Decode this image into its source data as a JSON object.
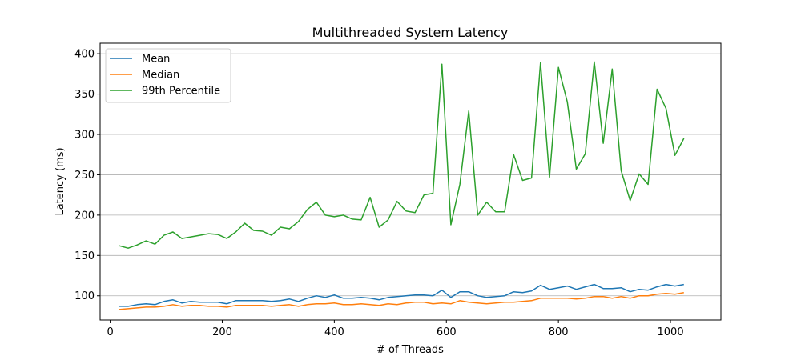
{
  "chart_data": {
    "type": "line",
    "title": "Multithreaded System Latency",
    "xlabel": "# of Threads",
    "ylabel": "Latency (ms)",
    "xlim": [
      -18,
      1090
    ],
    "ylim": [
      70,
      413
    ],
    "xticks": [
      0,
      200,
      400,
      600,
      800,
      1000
    ],
    "yticks": [
      100,
      150,
      200,
      250,
      300,
      350,
      400
    ],
    "grid": "y",
    "legend_position": "upper-left",
    "x": [
      16,
      32,
      48,
      64,
      80,
      96,
      112,
      128,
      144,
      160,
      176,
      192,
      208,
      224,
      240,
      256,
      272,
      288,
      304,
      320,
      336,
      352,
      368,
      384,
      400,
      416,
      432,
      448,
      464,
      480,
      496,
      512,
      528,
      544,
      560,
      576,
      592,
      608,
      624,
      640,
      656,
      672,
      688,
      704,
      720,
      736,
      752,
      768,
      784,
      800,
      816,
      832,
      848,
      864,
      880,
      896,
      912,
      928,
      944,
      960,
      976,
      992,
      1008,
      1024
    ],
    "series": [
      {
        "name": "Mean",
        "color": "#1f77b4",
        "values": [
          87,
          87,
          89,
          90,
          89,
          93,
          95,
          91,
          93,
          92,
          92,
          92,
          90,
          94,
          94,
          94,
          94,
          93,
          94,
          96,
          93,
          97,
          100,
          98,
          101,
          97,
          97,
          98,
          97,
          95,
          98,
          99,
          100,
          101,
          101,
          100,
          107,
          98,
          105,
          105,
          100,
          98,
          99,
          100,
          105,
          104,
          106,
          113,
          108,
          110,
          112,
          108,
          111,
          114,
          109,
          109,
          110,
          105,
          108,
          107,
          111,
          114,
          112,
          114
        ]
      },
      {
        "name": "Median",
        "color": "#ff7f0e",
        "values": [
          83,
          84,
          85,
          86,
          86,
          87,
          89,
          87,
          88,
          88,
          87,
          87,
          86,
          88,
          88,
          88,
          88,
          87,
          88,
          89,
          87,
          89,
          90,
          90,
          91,
          89,
          89,
          90,
          89,
          88,
          90,
          89,
          91,
          92,
          92,
          90,
          91,
          90,
          94,
          92,
          91,
          90,
          91,
          92,
          92,
          93,
          94,
          97,
          97,
          97,
          97,
          96,
          97,
          99,
          99,
          97,
          99,
          97,
          100,
          100,
          102,
          103,
          102,
          104
        ]
      },
      {
        "name": "99th Percentile",
        "color": "#2ca02c",
        "values": [
          162,
          159,
          163,
          168,
          164,
          175,
          179,
          171,
          173,
          175,
          177,
          176,
          171,
          179,
          190,
          181,
          180,
          175,
          185,
          183,
          192,
          207,
          216,
          200,
          198,
          200,
          195,
          194,
          222,
          185,
          194,
          217,
          205,
          203,
          225,
          227,
          387,
          188,
          238,
          329,
          200,
          216,
          204,
          204,
          275,
          243,
          246,
          389,
          247,
          383,
          340,
          257,
          276,
          390,
          289,
          381,
          255,
          218,
          251,
          238,
          356,
          332,
          274,
          295
        ]
      }
    ]
  }
}
